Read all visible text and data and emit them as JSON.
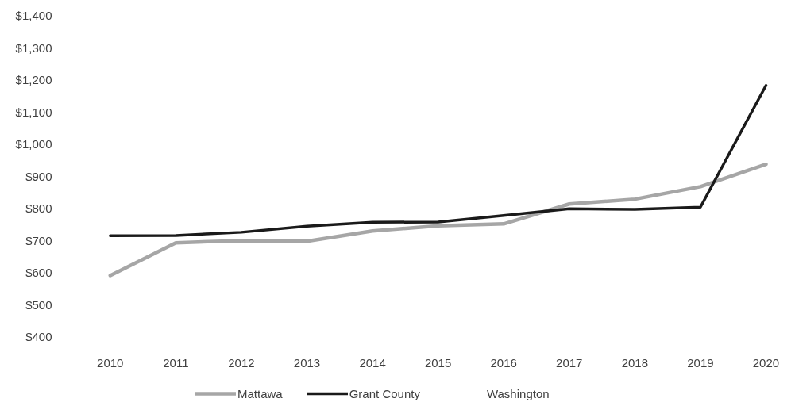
{
  "chart_data": {
    "type": "line",
    "categories": [
      "2010",
      "2011",
      "2012",
      "2013",
      "2014",
      "2015",
      "2016",
      "2017",
      "2018",
      "2019",
      "2020"
    ],
    "series": [
      {
        "name": "Mattawa",
        "color": "#a6a6a6",
        "values": [
          590,
          692,
          699,
          697,
          729,
          745,
          751,
          813,
          828,
          867,
          937
        ]
      },
      {
        "name": "Grant County",
        "color": "#1a1a1a",
        "values": [
          714,
          715,
          725,
          744,
          756,
          757,
          777,
          798,
          796,
          803,
          1182
        ]
      }
    ],
    "ylim": [
      400,
      1400
    ],
    "yticks": [
      {
        "value": 400,
        "label": "$400"
      },
      {
        "value": 500,
        "label": "$500"
      },
      {
        "value": 600,
        "label": "$600"
      },
      {
        "value": 700,
        "label": "$700"
      },
      {
        "value": 800,
        "label": "$800"
      },
      {
        "value": 900,
        "label": "$900"
      },
      {
        "value": 1000,
        "label": "$1,000"
      },
      {
        "value": 1100,
        "label": "$1,100"
      },
      {
        "value": 1200,
        "label": "$1,200"
      },
      {
        "value": 1300,
        "label": "$1,300"
      },
      {
        "value": 1400,
        "label": "$1,400"
      }
    ],
    "legend": "bottom",
    "annotations": [
      "Washington"
    ]
  }
}
